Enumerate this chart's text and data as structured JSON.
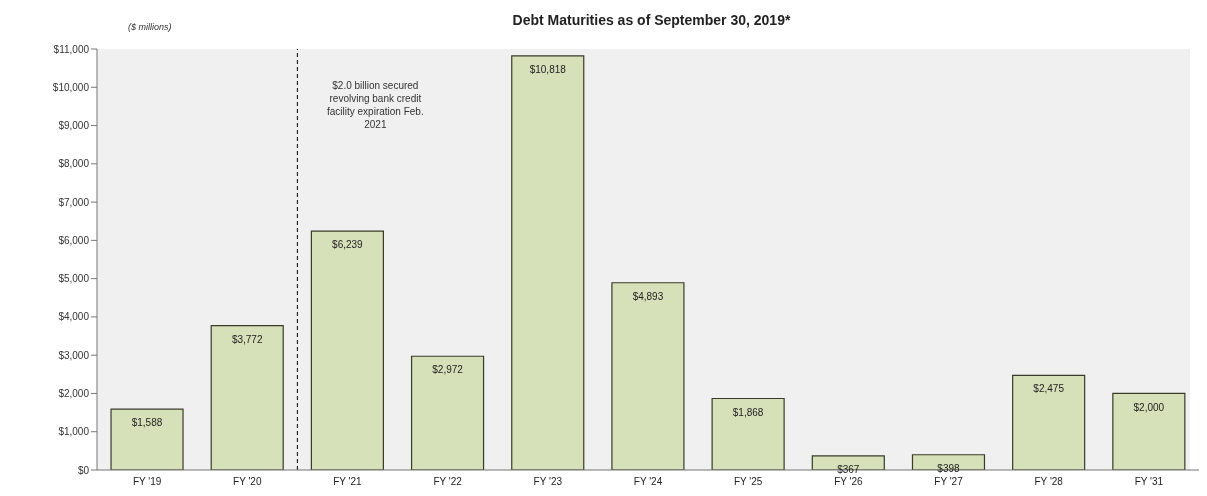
{
  "chart_data": {
    "type": "bar",
    "title": "Debt Maturities as of September 30, 2019*",
    "ylabel": "($ millions)",
    "categories": [
      "FY '19",
      "FY '20",
      "FY '21",
      "FY '22",
      "FY '23",
      "FY '24",
      "FY '25",
      "FY '26",
      "FY '27",
      "FY '28",
      "FY '31"
    ],
    "values": [
      1588,
      3772,
      6239,
      2972,
      10818,
      4893,
      1868,
      367,
      398,
      2475,
      2000
    ],
    "value_labels": [
      "$1,588",
      "$3,772",
      "$6,239",
      "$2,972",
      "$10,818",
      "$4,893",
      "$1,868",
      "$367",
      "$398",
      "$2,475",
      "$2,000"
    ],
    "color": "#d6e1b9",
    "ylim": [
      0,
      11000
    ],
    "yticks": [
      {
        "value": 0,
        "label": "$0"
      },
      {
        "value": 1000,
        "label": "$1,000"
      },
      {
        "value": 2000,
        "label": "$2,000"
      },
      {
        "value": 3000,
        "label": "$3,000"
      },
      {
        "value": 4000,
        "label": "$4,000"
      },
      {
        "value": 5000,
        "label": "$5,000"
      },
      {
        "value": 6000,
        "label": "$6,000"
      },
      {
        "value": 7000,
        "label": "$7,000"
      },
      {
        "value": 8000,
        "label": "$8,000"
      },
      {
        "value": 9000,
        "label": "$9,000"
      },
      {
        "value": 10000,
        "label": "$10,000"
      },
      {
        "value": 11000,
        "label": "$11,000"
      }
    ],
    "annotations": [
      "$2.0 billion secured revolving bank credit facility expiration Feb. 2021"
    ],
    "grid": false,
    "legend": false
  }
}
